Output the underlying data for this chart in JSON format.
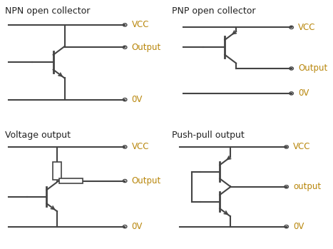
{
  "title_color": "#222222",
  "line_color": "#444444",
  "text_color": "#222222",
  "label_color": "#b8860b",
  "bg_color": "#ffffff",
  "titles": [
    "NPN open collector",
    "PNP open collector",
    "Voltage output",
    "Push-pull output"
  ],
  "lbl_vcc": "VCC",
  "lbl_out": "Output",
  "lbl_ov": "0V",
  "lbl_out2": "output"
}
